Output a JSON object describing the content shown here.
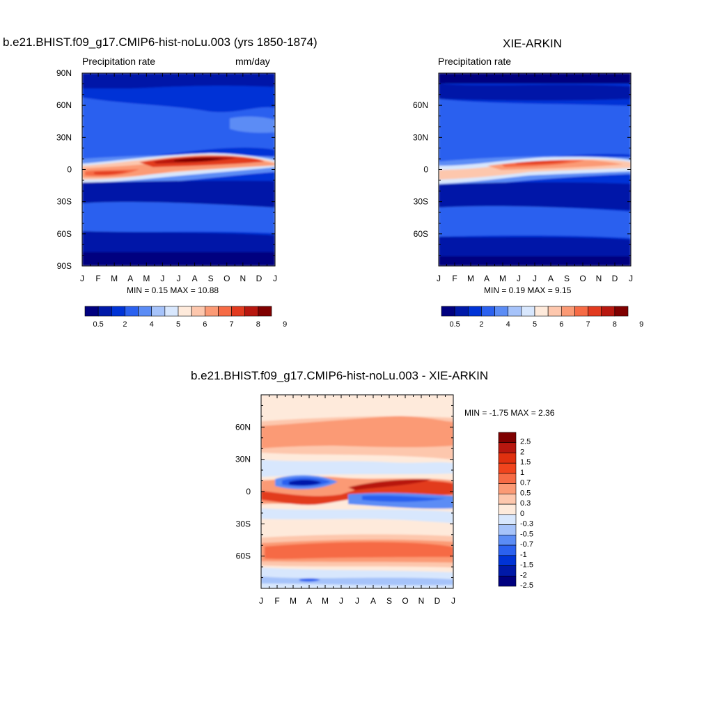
{
  "colors": {
    "abs": [
      "#00007f",
      "#0019a8",
      "#0033d6",
      "#2b61ef",
      "#5b8cf5",
      "#a6c3fa",
      "#d8e7fd",
      "#feeadb",
      "#fdc7ad",
      "#fb9a75",
      "#f66b45",
      "#e23a1f",
      "#b7170f",
      "#7f0000"
    ],
    "diff": [
      "#00007f",
      "#0019a8",
      "#0033d6",
      "#2b61ef",
      "#5b8cf5",
      "#a6c3fa",
      "#d8e7fd",
      "#feeadb",
      "#fdc7ad",
      "#fb9a75",
      "#f66b45",
      "#f0441d",
      "#e0300f",
      "#b7170f",
      "#7f0000"
    ]
  },
  "chart_data": [
    {
      "type": "heatmap",
      "title": "b.e21.BHIST.f09_g17.CMIP6-hist-noLu.003 (yrs 1850-1874)",
      "left_label": "Precipitation rate",
      "right_label": "mm/day",
      "x_labels": [
        "J",
        "F",
        "M",
        "A",
        "M",
        "J",
        "J",
        "A",
        "S",
        "O",
        "N",
        "D",
        "J"
      ],
      "y_labels": [
        "90N",
        "60N",
        "30N",
        "0",
        "30S",
        "60S",
        "90S"
      ],
      "y_range": [
        -90,
        90
      ],
      "summary": "MIN =   0.15 MAX =  10.88",
      "min": 0.15,
      "max": 10.88,
      "levels": [
        0.5,
        1,
        2,
        3,
        4,
        4.5,
        5,
        5.5,
        6,
        6.5,
        7,
        7.5,
        8,
        9
      ],
      "colorbar_labels": [
        "0.5",
        "2",
        "4",
        "5",
        "6",
        "7",
        "8",
        "9"
      ]
    },
    {
      "type": "heatmap",
      "title": "XIE-ARKIN",
      "left_label": "Precipitation rate",
      "x_labels": [
        "J",
        "F",
        "M",
        "A",
        "M",
        "J",
        "J",
        "A",
        "S",
        "O",
        "N",
        "D",
        "J"
      ],
      "y_labels": [
        "60N",
        "30N",
        "0",
        "30S",
        "60S"
      ],
      "y_range": [
        -90,
        90
      ],
      "summary": "MIN =   0.19 MAX =   9.15",
      "min": 0.19,
      "max": 9.15,
      "levels": [
        0.5,
        1,
        2,
        3,
        4,
        4.5,
        5,
        5.5,
        6,
        6.5,
        7,
        7.5,
        8,
        9
      ],
      "colorbar_labels": [
        "0.5",
        "2",
        "4",
        "5",
        "6",
        "7",
        "8",
        "9"
      ]
    },
    {
      "type": "heatmap",
      "title": "b.e21.BHIST.f09_g17.CMIP6-hist-noLu.003 - XIE-ARKIN",
      "x_labels": [
        "J",
        "F",
        "M",
        "A",
        "M",
        "J",
        "J",
        "A",
        "S",
        "O",
        "N",
        "D",
        "J"
      ],
      "y_labels": [
        "60N",
        "30N",
        "0",
        "30S",
        "60S"
      ],
      "y_range": [
        -90,
        90
      ],
      "summary": "MIN =  -1.75 MAX =   2.36",
      "min": -1.75,
      "max": 2.36,
      "levels": [
        -2.5,
        -2,
        -1.5,
        -1,
        -0.7,
        -0.5,
        -0.3,
        0,
        0.3,
        0.5,
        0.7,
        1,
        1.5,
        2,
        2.5
      ],
      "colorbar_labels": [
        "2.5",
        "2",
        "1.5",
        "1",
        "0.7",
        "0.5",
        "0.3",
        "0",
        "-0.3",
        "-0.5",
        "-0.7",
        "-1",
        "-1.5",
        "-2",
        "-2.5"
      ]
    }
  ]
}
